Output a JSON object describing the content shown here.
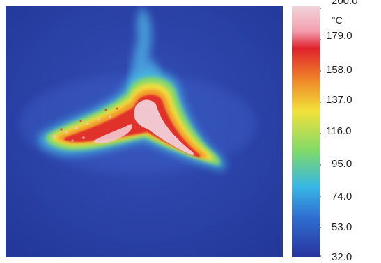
{
  "scale": {
    "unit": "°C",
    "top_label_partial": "200.0",
    "ticks": [
      "179.0",
      "158.0",
      "137.0",
      "116.0",
      "95.0",
      "74.0",
      "53.0",
      "32.0"
    ]
  },
  "palette": {
    "cold": "#2a3fa8",
    "cool": "#2f9be0",
    "mid": "#7ed96b",
    "warm": "#f0e23a",
    "hot": "#e53a2a",
    "max": "#f2c6cf"
  }
}
